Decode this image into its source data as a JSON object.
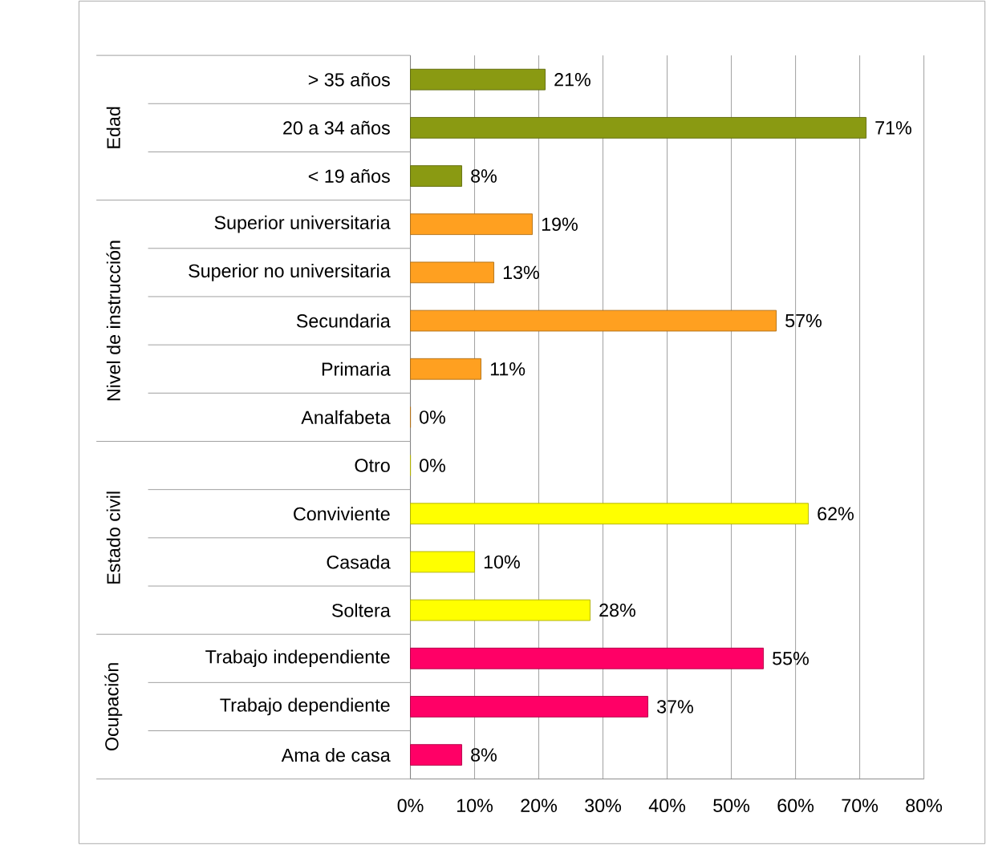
{
  "chart_data": {
    "type": "bar",
    "orientation": "horizontal",
    "grid": "x",
    "categories": [
      "> 35 años",
      "20 a 34 años",
      "<  19  años",
      "Superior universitaria",
      "Superior no universitaria",
      "Secundaria",
      "Primaria",
      "Analfabeta",
      "Otro",
      "Conviviente",
      "Casada",
      "Soltera",
      "Trabajo independiente",
      "Trabajo dependiente",
      "Ama de casa"
    ],
    "values": [
      21,
      71,
      8,
      19,
      13,
      57,
      11,
      0,
      0,
      62,
      10,
      28,
      55,
      37,
      8
    ],
    "value_labels": [
      "21%",
      "71%",
      "8%",
      "19%",
      "13%",
      "57%",
      "11%",
      "0%",
      "0%",
      "62%",
      "10%",
      "28%",
      "55%",
      "37%",
      "8%"
    ],
    "colors": [
      "#8a9a12",
      "#8a9a12",
      "#8a9a12",
      "#ffa020",
      "#ffa020",
      "#ffa020",
      "#ffa020",
      "#ffa020",
      "#ffff00",
      "#ffff00",
      "#ffff00",
      "#ffff00",
      "#ff0066",
      "#ff0066",
      "#ff0066"
    ],
    "xlim": [
      0,
      80
    ],
    "xticks": [
      {
        "value": 0,
        "label": "0%"
      },
      {
        "value": 10,
        "label": "10%"
      },
      {
        "value": 20,
        "label": "20%"
      },
      {
        "value": 30,
        "label": "30%"
      },
      {
        "value": 40,
        "label": "40%"
      },
      {
        "value": 50,
        "label": "50%"
      },
      {
        "value": 60,
        "label": "60%"
      },
      {
        "value": 70,
        "label": "70%"
      },
      {
        "value": 80,
        "label": "80%"
      }
    ],
    "annotations": [
      "Edad",
      "Nivel de instrucción",
      "Estado civil",
      "Ocupación"
    ]
  }
}
